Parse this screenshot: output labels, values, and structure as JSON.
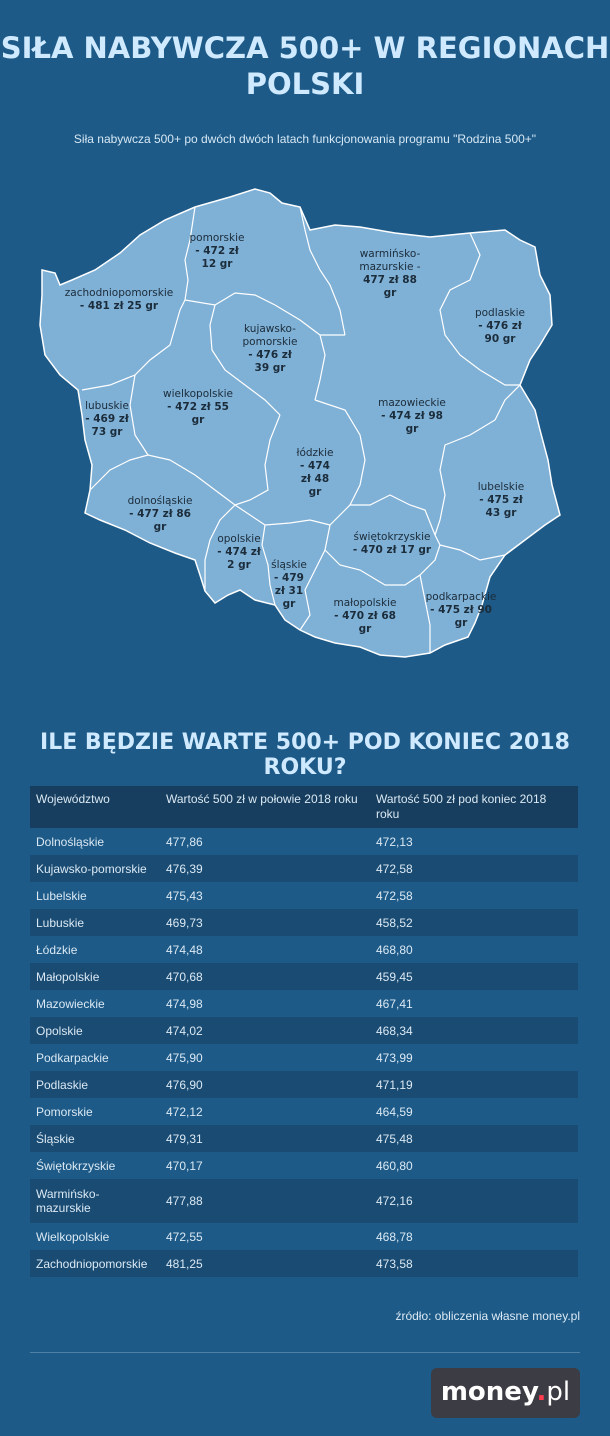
{
  "title_line1": "SIŁA NABYWCZA 500+ W REGIONACH",
  "title_line2": "POLSKI",
  "subtitle": "Siła nabywcza 500+ po dwóch dwóch latach funkcjonowania programu \"Rodzina 500+\"",
  "map_colors": {
    "fill": "#7fb0d6",
    "border": "#ffffff"
  },
  "map_labels": {
    "pomorskie": {
      "name": "pomorskie",
      "value": "- 472 zł\n12 gr"
    },
    "warminsko": {
      "name": "warmińsko-\nmazurskie -",
      "value": "477 zł 88\ngr"
    },
    "zachodnio": {
      "name": "zachodniopomorskie",
      "value": "- 481 zł 25 gr"
    },
    "podlaskie": {
      "name": "podlaskie",
      "value": "- 476 zł\n90 gr"
    },
    "kujawsko": {
      "name": "kujawsko-\npomorskie",
      "value": "- 476 zł\n39 gr"
    },
    "lubuskie": {
      "name": "lubuskie",
      "value": "- 469 zł\n73 gr"
    },
    "wielkopolskie": {
      "name": "wielkopolskie",
      "value": "- 472 zł 55\ngr"
    },
    "mazowieckie": {
      "name": "mazowieckie",
      "value": "- 474 zł 98\ngr"
    },
    "lodzkie": {
      "name": "łódzkie",
      "value": "- 474\nzł 48\ngr"
    },
    "lubelskie": {
      "name": "lubelskie",
      "value": "- 475 zł\n43 gr"
    },
    "dolnoslaskie": {
      "name": "dolnośląskie",
      "value": "- 477 zł 86\ngr"
    },
    "swietokrzyskie": {
      "name": "świętokrzyskie",
      "value": "- 470 zł 17 gr"
    },
    "opolskie": {
      "name": "opolskie",
      "value": "- 474 zł\n2 gr"
    },
    "slaskie": {
      "name": "śląskie",
      "value": "- 479\nzł 31\ngr"
    },
    "malopolskie": {
      "name": "małopolskie",
      "value": "- 470 zł 68\ngr"
    },
    "podkarpackie": {
      "name": "podkarpackie",
      "value": "- 475 zł 90\ngr"
    }
  },
  "table_title": "ILE BĘDZIE WARTE 500+ POD KONIEC 2018 ROKU?",
  "table_headers": [
    "Województwo",
    "Wartość 500 zł w połowie 2018 roku",
    "Wartość 500 zł pod koniec 2018 roku"
  ],
  "table_rows": [
    [
      "Dolnośląskie",
      "477,86",
      "472,13"
    ],
    [
      "Kujawsko-pomorskie",
      "476,39",
      "472,58"
    ],
    [
      "Lubelskie",
      "475,43",
      "472,58"
    ],
    [
      "Lubuskie",
      "469,73",
      "458,52"
    ],
    [
      "Łódzkie",
      "474,48",
      "468,80"
    ],
    [
      "Małopolskie",
      "470,68",
      "459,45"
    ],
    [
      "Mazowieckie",
      "474,98",
      "467,41"
    ],
    [
      "Opolskie",
      "474,02",
      "468,34"
    ],
    [
      "Podkarpackie",
      "475,90",
      "473,99"
    ],
    [
      "Podlaskie",
      "476,90",
      "471,19"
    ],
    [
      "Pomorskie",
      "472,12",
      "464,59"
    ],
    [
      "Śląskie",
      "479,31",
      "475,48"
    ],
    [
      "Świętokrzyskie",
      "470,17",
      "460,80"
    ],
    [
      "Warmińsko-mazurskie",
      "477,88",
      "472,16"
    ],
    [
      "Wielkopolskie",
      "472,55",
      "468,78"
    ],
    [
      "Zachodniopomorskie",
      "481,25",
      "473,58"
    ]
  ],
  "source": "źródło: obliczenia własne money.pl",
  "logo": {
    "main": "money",
    "dot": ".",
    "tld": "pl"
  }
}
